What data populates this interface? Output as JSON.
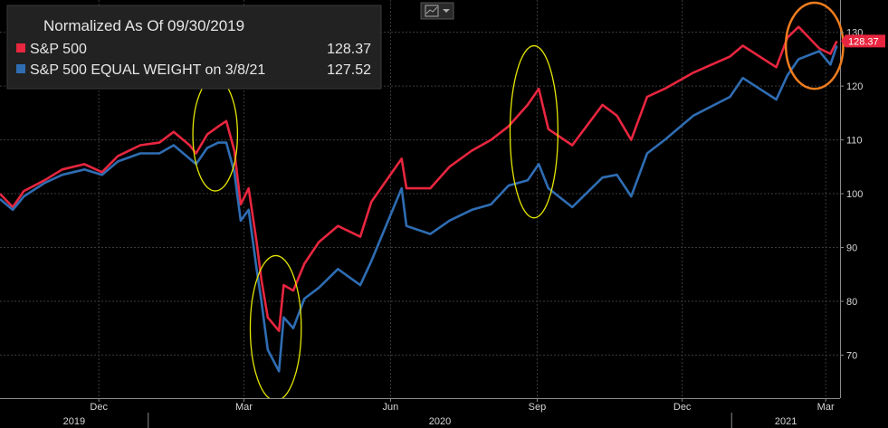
{
  "header": {
    "chart_type_icon": "line-chart-icon",
    "dropdown_icon": "caret-down-icon"
  },
  "chart_data": {
    "type": "line",
    "title": "Normalized As Of 09/30/2019",
    "xlabel": "",
    "ylabel": "",
    "ylim": [
      62,
      136
    ],
    "yticks": [
      70,
      80,
      90,
      100,
      110,
      120,
      130
    ],
    "xlim": [
      "2019-09-30",
      "2021-03-10"
    ],
    "month_ticks": [
      {
        "label": "Dec",
        "date": "2019-12-01"
      },
      {
        "label": "Mar",
        "date": "2020-03-01"
      },
      {
        "label": "Jun",
        "date": "2020-06-01"
      },
      {
        "label": "Sep",
        "date": "2020-09-01"
      },
      {
        "label": "Dec",
        "date": "2020-12-01"
      },
      {
        "label": "Mar",
        "date": "2021-03-01"
      }
    ],
    "years": [
      {
        "label": "2019",
        "from": "2019-09-30",
        "to": "2020-01-01"
      },
      {
        "label": "2020",
        "from": "2020-01-01",
        "to": "2021-01-01"
      },
      {
        "label": "2021",
        "from": "2021-01-01",
        "to": "2021-03-10"
      }
    ],
    "grid": true,
    "legend_position": "top-left",
    "series": [
      {
        "name": "S&P 500",
        "legend_value": "128.37",
        "color": "#e8263f",
        "points": [
          [
            "2019-09-30",
            100
          ],
          [
            "2019-10-08",
            97.5
          ],
          [
            "2019-10-15",
            100.5
          ],
          [
            "2019-10-28",
            102.5
          ],
          [
            "2019-11-08",
            104.5
          ],
          [
            "2019-11-22",
            105.5
          ],
          [
            "2019-12-03",
            104
          ],
          [
            "2019-12-13",
            107
          ],
          [
            "2019-12-27",
            109
          ],
          [
            "2020-01-08",
            109.5
          ],
          [
            "2020-01-17",
            111.5
          ],
          [
            "2020-01-27",
            109
          ],
          [
            "2020-01-31",
            107.5
          ],
          [
            "2020-02-07",
            111
          ],
          [
            "2020-02-14",
            112.5
          ],
          [
            "2020-02-19",
            113.5
          ],
          [
            "2020-02-24",
            108
          ],
          [
            "2020-02-28",
            98
          ],
          [
            "2020-03-04",
            101
          ],
          [
            "2020-03-09",
            91
          ],
          [
            "2020-03-12",
            84
          ],
          [
            "2020-03-16",
            77
          ],
          [
            "2020-03-23",
            74.5
          ],
          [
            "2020-03-26",
            83
          ],
          [
            "2020-04-01",
            82
          ],
          [
            "2020-04-08",
            87
          ],
          [
            "2020-04-17",
            91
          ],
          [
            "2020-04-29",
            94
          ],
          [
            "2020-05-13",
            92
          ],
          [
            "2020-05-20",
            98.5
          ],
          [
            "2020-06-08",
            106.5
          ],
          [
            "2020-06-11",
            101
          ],
          [
            "2020-06-26",
            101
          ],
          [
            "2020-07-08",
            105
          ],
          [
            "2020-07-22",
            108
          ],
          [
            "2020-08-03",
            110
          ],
          [
            "2020-08-14",
            112.5
          ],
          [
            "2020-08-26",
            116.5
          ],
          [
            "2020-09-02",
            119.5
          ],
          [
            "2020-09-08",
            112
          ],
          [
            "2020-09-23",
            109
          ],
          [
            "2020-10-12",
            116.5
          ],
          [
            "2020-10-21",
            114.5
          ],
          [
            "2020-10-30",
            110
          ],
          [
            "2020-11-09",
            118
          ],
          [
            "2020-11-20",
            119.5
          ],
          [
            "2020-12-08",
            122.5
          ],
          [
            "2020-12-31",
            125.5
          ],
          [
            "2021-01-08",
            127.5
          ],
          [
            "2021-01-29",
            123.5
          ],
          [
            "2021-02-05",
            129
          ],
          [
            "2021-02-12",
            131
          ],
          [
            "2021-02-25",
            127
          ],
          [
            "2021-03-04",
            126
          ],
          [
            "2021-03-08",
            128.37
          ]
        ]
      },
      {
        "name": "S&P 500 EQUAL WEIGHT on 3/8/21",
        "legend_value": "127.52",
        "color": "#2f6db3",
        "points": [
          [
            "2019-09-30",
            99
          ],
          [
            "2019-10-08",
            97
          ],
          [
            "2019-10-15",
            99.5
          ],
          [
            "2019-10-28",
            102
          ],
          [
            "2019-11-08",
            103.5
          ],
          [
            "2019-11-22",
            104.5
          ],
          [
            "2019-12-03",
            103.5
          ],
          [
            "2019-12-13",
            106
          ],
          [
            "2019-12-27",
            107.5
          ],
          [
            "2020-01-08",
            107.5
          ],
          [
            "2020-01-17",
            109
          ],
          [
            "2020-01-27",
            106.5
          ],
          [
            "2020-01-31",
            105.5
          ],
          [
            "2020-02-07",
            108.5
          ],
          [
            "2020-02-14",
            109.5
          ],
          [
            "2020-02-19",
            109.5
          ],
          [
            "2020-02-24",
            104
          ],
          [
            "2020-02-28",
            95
          ],
          [
            "2020-03-04",
            97
          ],
          [
            "2020-03-09",
            86
          ],
          [
            "2020-03-12",
            80
          ],
          [
            "2020-03-16",
            71
          ],
          [
            "2020-03-23",
            67
          ],
          [
            "2020-03-26",
            77
          ],
          [
            "2020-04-01",
            75
          ],
          [
            "2020-04-08",
            80.5
          ],
          [
            "2020-04-17",
            82.5
          ],
          [
            "2020-04-29",
            86
          ],
          [
            "2020-05-13",
            83
          ],
          [
            "2020-05-20",
            87.5
          ],
          [
            "2020-06-08",
            101
          ],
          [
            "2020-06-11",
            94
          ],
          [
            "2020-06-26",
            92.5
          ],
          [
            "2020-07-08",
            95
          ],
          [
            "2020-07-22",
            97
          ],
          [
            "2020-08-03",
            98
          ],
          [
            "2020-08-14",
            101.5
          ],
          [
            "2020-08-26",
            102.5
          ],
          [
            "2020-09-02",
            105.5
          ],
          [
            "2020-09-08",
            101
          ],
          [
            "2020-09-23",
            97.5
          ],
          [
            "2020-10-12",
            103
          ],
          [
            "2020-10-21",
            103.5
          ],
          [
            "2020-10-30",
            99.5
          ],
          [
            "2020-11-09",
            107.5
          ],
          [
            "2020-11-20",
            110
          ],
          [
            "2020-12-08",
            114.5
          ],
          [
            "2020-12-31",
            118
          ],
          [
            "2021-01-08",
            121.5
          ],
          [
            "2021-01-29",
            117.5
          ],
          [
            "2021-02-05",
            122
          ],
          [
            "2021-02-12",
            125
          ],
          [
            "2021-02-25",
            126.5
          ],
          [
            "2021-03-04",
            124
          ],
          [
            "2021-03-08",
            127.52
          ]
        ]
      }
    ],
    "last_value_tag": {
      "value": "128.37",
      "color": "#e8263f"
    },
    "annotations": [
      {
        "shape": "ellipse",
        "color": "#e6e600",
        "date": "2020-02-12",
        "y": 111,
        "rx_days": 14,
        "ry_units": 10.5
      },
      {
        "shape": "ellipse",
        "color": "#e6e600",
        "date": "2020-03-21",
        "y": 75,
        "rx_days": 16,
        "ry_units": 13.5
      },
      {
        "shape": "ellipse",
        "color": "#e6e600",
        "date": "2020-08-30",
        "y": 111.5,
        "rx_days": 15,
        "ry_units": 16
      },
      {
        "shape": "ellipse",
        "color": "#f07d1e",
        "date": "2021-02-22",
        "y": 127.5,
        "rx_days": 18,
        "ry_units": 8
      }
    ]
  }
}
